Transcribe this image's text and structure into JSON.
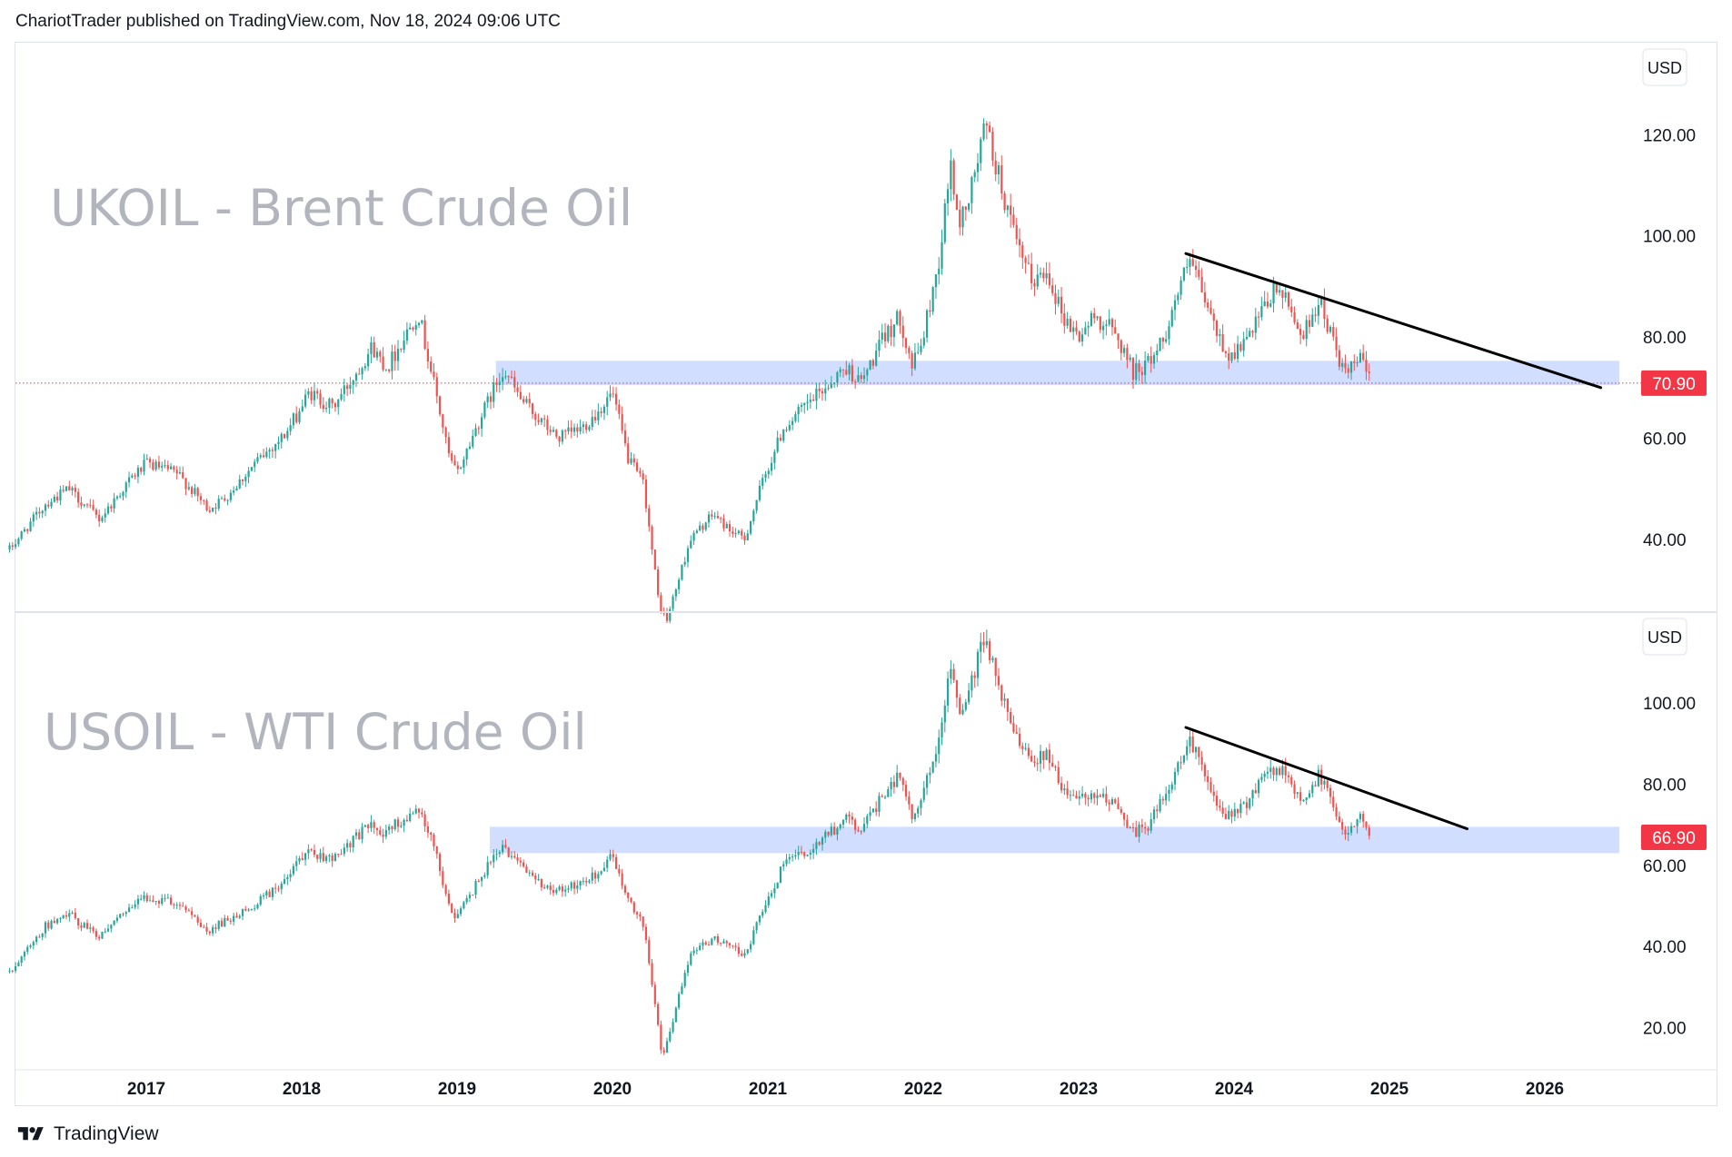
{
  "header": {
    "text": "ChariotTrader published on TradingView.com, Nov 18, 2024 09:06 UTC"
  },
  "footer": {
    "brand": "TradingView",
    "logo_icon": "tradingview-logo-icon"
  },
  "colors": {
    "up": "#26a69a",
    "down": "#ef5350",
    "zone": "#c9d8ff",
    "trendline": "#000000",
    "price_badge": "#f23645",
    "watermark": "#b2b5be"
  },
  "chart_data": [
    {
      "type": "candlestick",
      "title": "UKOIL - Brent Crude Oil",
      "currency": "USD",
      "yticks": [
        40,
        60,
        80,
        100,
        120
      ],
      "ylim": [
        26,
        138
      ],
      "last_price": "70.90",
      "last_value": 70.9,
      "support_zone": {
        "from_date": 2019.25,
        "to_date": 2026.48,
        "low": 70.5,
        "high": 75.3
      },
      "trendline": {
        "x": [
          2023.69,
          2026.36
        ],
        "y": [
          96.5,
          70.0
        ]
      },
      "dotted_price_line": true,
      "anchors": [
        [
          2016.12,
          38
        ],
        [
          2016.35,
          47
        ],
        [
          2016.5,
          50
        ],
        [
          2016.7,
          44
        ],
        [
          2016.9,
          52
        ],
        [
          2017.0,
          55
        ],
        [
          2017.2,
          53
        ],
        [
          2017.4,
          46
        ],
        [
          2017.5,
          48
        ],
        [
          2017.7,
          55
        ],
        [
          2017.9,
          61
        ],
        [
          2018.05,
          69
        ],
        [
          2018.2,
          66
        ],
        [
          2018.35,
          73
        ],
        [
          2018.45,
          78
        ],
        [
          2018.55,
          74
        ],
        [
          2018.75,
          85
        ],
        [
          2018.85,
          71
        ],
        [
          2018.95,
          56
        ],
        [
          2019.0,
          53
        ],
        [
          2019.15,
          64
        ],
        [
          2019.3,
          74
        ],
        [
          2019.4,
          68
        ],
        [
          2019.55,
          63
        ],
        [
          2019.65,
          60
        ],
        [
          2019.8,
          62
        ],
        [
          2019.9,
          65
        ],
        [
          2020.0,
          69
        ],
        [
          2020.1,
          56
        ],
        [
          2020.2,
          51
        ],
        [
          2020.3,
          27
        ],
        [
          2020.35,
          24
        ],
        [
          2020.5,
          40
        ],
        [
          2020.65,
          45
        ],
        [
          2020.75,
          42
        ],
        [
          2020.85,
          40
        ],
        [
          2020.95,
          50
        ],
        [
          2021.1,
          62
        ],
        [
          2021.3,
          68
        ],
        [
          2021.5,
          74
        ],
        [
          2021.6,
          71
        ],
        [
          2021.75,
          80
        ],
        [
          2021.85,
          84
        ],
        [
          2021.93,
          74
        ],
        [
          2022.0,
          80
        ],
        [
          2022.1,
          95
        ],
        [
          2022.18,
          115
        ],
        [
          2022.22,
          102
        ],
        [
          2022.3,
          108
        ],
        [
          2022.4,
          122
        ],
        [
          2022.5,
          110
        ],
        [
          2022.6,
          98
        ],
        [
          2022.7,
          91
        ],
        [
          2022.8,
          93
        ],
        [
          2022.9,
          84
        ],
        [
          2023.0,
          80
        ],
        [
          2023.1,
          84
        ],
        [
          2023.2,
          82
        ],
        [
          2023.3,
          77
        ],
        [
          2023.35,
          73
        ],
        [
          2023.45,
          75
        ],
        [
          2023.55,
          80
        ],
        [
          2023.65,
          90
        ],
        [
          2023.72,
          95
        ],
        [
          2023.8,
          88
        ],
        [
          2023.9,
          80
        ],
        [
          2023.97,
          76
        ],
        [
          2024.1,
          80
        ],
        [
          2024.2,
          86
        ],
        [
          2024.28,
          90
        ],
        [
          2024.35,
          86
        ],
        [
          2024.45,
          80
        ],
        [
          2024.5,
          85
        ],
        [
          2024.55,
          87
        ],
        [
          2024.65,
          78
        ],
        [
          2024.72,
          72
        ],
        [
          2024.8,
          76
        ],
        [
          2024.87,
          72
        ],
        [
          2024.88,
          71
        ]
      ]
    },
    {
      "type": "candlestick",
      "title": "USOIL - WTI Crude Oil",
      "currency": "USD",
      "yticks": [
        20,
        40,
        60,
        80,
        100
      ],
      "ylim": [
        10,
        122
      ],
      "last_price": "66.90",
      "last_value": 66.9,
      "support_zone": {
        "from_date": 2019.21,
        "to_date": 2026.48,
        "low": 63.0,
        "high": 69.5
      },
      "trendline": {
        "x": [
          2023.69,
          2025.5
        ],
        "y": [
          94.0,
          69.0
        ]
      },
      "dotted_price_line": false,
      "anchors": [
        [
          2016.12,
          34
        ],
        [
          2016.35,
          45
        ],
        [
          2016.5,
          48
        ],
        [
          2016.7,
          42
        ],
        [
          2016.9,
          50
        ],
        [
          2017.0,
          52
        ],
        [
          2017.2,
          51
        ],
        [
          2017.4,
          44
        ],
        [
          2017.5,
          46
        ],
        [
          2017.7,
          50
        ],
        [
          2017.9,
          57
        ],
        [
          2018.05,
          63
        ],
        [
          2018.2,
          62
        ],
        [
          2018.35,
          67
        ],
        [
          2018.45,
          70
        ],
        [
          2018.55,
          68
        ],
        [
          2018.75,
          75
        ],
        [
          2018.85,
          65
        ],
        [
          2018.95,
          50
        ],
        [
          2019.0,
          47
        ],
        [
          2019.15,
          57
        ],
        [
          2019.3,
          65
        ],
        [
          2019.4,
          60
        ],
        [
          2019.55,
          55
        ],
        [
          2019.65,
          54
        ],
        [
          2019.8,
          56
        ],
        [
          2019.9,
          58
        ],
        [
          2020.0,
          62
        ],
        [
          2020.1,
          51
        ],
        [
          2020.2,
          45
        ],
        [
          2020.3,
          18
        ],
        [
          2020.32,
          12
        ],
        [
          2020.5,
          38
        ],
        [
          2020.65,
          42
        ],
        [
          2020.75,
          40
        ],
        [
          2020.85,
          38
        ],
        [
          2020.95,
          47
        ],
        [
          2021.1,
          60
        ],
        [
          2021.3,
          64
        ],
        [
          2021.5,
          72
        ],
        [
          2021.6,
          68
        ],
        [
          2021.75,
          78
        ],
        [
          2021.85,
          83
        ],
        [
          2021.93,
          70
        ],
        [
          2022.0,
          78
        ],
        [
          2022.1,
          92
        ],
        [
          2022.18,
          110
        ],
        [
          2022.22,
          98
        ],
        [
          2022.3,
          104
        ],
        [
          2022.4,
          117
        ],
        [
          2022.5,
          103
        ],
        [
          2022.6,
          92
        ],
        [
          2022.7,
          86
        ],
        [
          2022.8,
          88
        ],
        [
          2022.9,
          78
        ],
        [
          2023.0,
          76
        ],
        [
          2023.1,
          78
        ],
        [
          2023.2,
          76
        ],
        [
          2023.3,
          70
        ],
        [
          2023.35,
          68
        ],
        [
          2023.45,
          70
        ],
        [
          2023.55,
          77
        ],
        [
          2023.65,
          86
        ],
        [
          2023.72,
          90
        ],
        [
          2023.8,
          84
        ],
        [
          2023.9,
          75
        ],
        [
          2023.97,
          72
        ],
        [
          2024.1,
          76
        ],
        [
          2024.2,
          82
        ],
        [
          2024.28,
          85
        ],
        [
          2024.35,
          80
        ],
        [
          2024.45,
          76
        ],
        [
          2024.5,
          80
        ],
        [
          2024.55,
          82
        ],
        [
          2024.65,
          74
        ],
        [
          2024.72,
          68
        ],
        [
          2024.8,
          72
        ],
        [
          2024.87,
          68
        ],
        [
          2024.88,
          67
        ]
      ]
    }
  ],
  "time_axis": {
    "labels": [
      "2017",
      "2018",
      "2019",
      "2020",
      "2021",
      "2022",
      "2023",
      "2024",
      "2025",
      "2026"
    ]
  }
}
